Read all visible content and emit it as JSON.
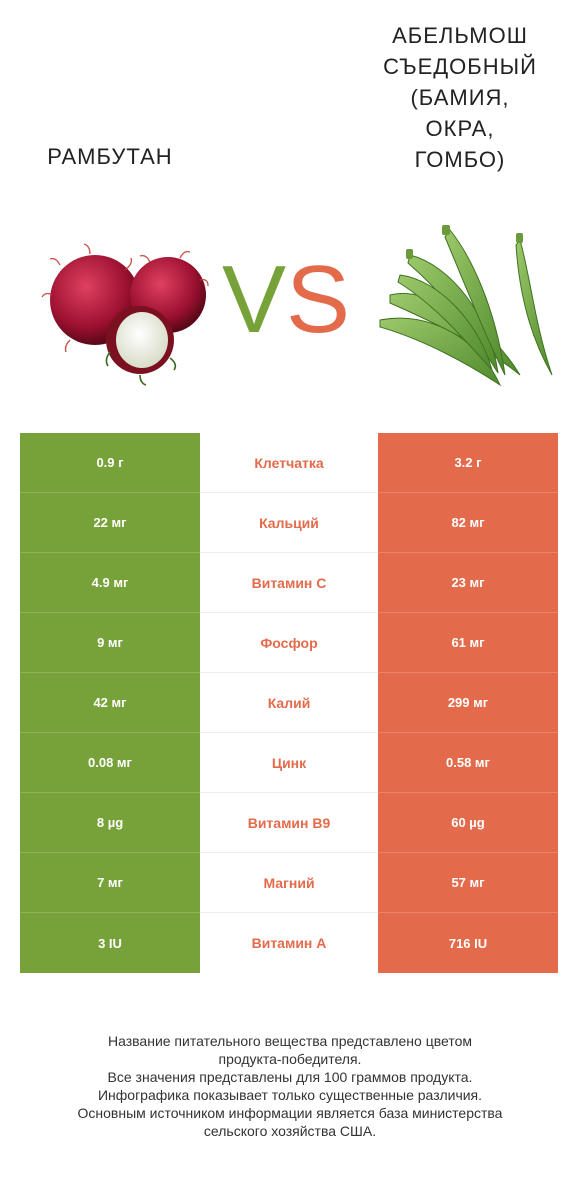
{
  "header": {
    "left_title": "РАМБУТАН",
    "right_title_lines": [
      "АБЕЛЬМОШ",
      "СЪЕДОБНЫЙ",
      "(БАМИЯ,",
      "ОКРА,",
      "ГОМБО)"
    ],
    "vs_v": "V",
    "vs_s": "S"
  },
  "colors": {
    "left": "#77a23a",
    "right": "#e36b4b"
  },
  "rows": [
    {
      "left": "0.9 г",
      "name": "Клетчатка",
      "right": "3.2 г"
    },
    {
      "left": "22 мг",
      "name": "Кальций",
      "right": "82 мг"
    },
    {
      "left": "4.9 мг",
      "name": "Витамин C",
      "right": "23 мг"
    },
    {
      "left": "9 мг",
      "name": "Фосфор",
      "right": "61 мг"
    },
    {
      "left": "42 мг",
      "name": "Калий",
      "right": "299 мг"
    },
    {
      "left": "0.08 мг",
      "name": "Цинк",
      "right": "0.58 мг"
    },
    {
      "left": "8 µg",
      "name": "Витамин B9",
      "right": "60 µg"
    },
    {
      "left": "7 мг",
      "name": "Магний",
      "right": "57 мг"
    },
    {
      "left": "3 IU",
      "name": "Витамин A",
      "right": "716 IU"
    }
  ],
  "footer": [
    "Название питательного вещества представлено цветом",
    "продукта-победителя.",
    "Все значения представлены для 100 граммов продукта.",
    "Инфографика показывает только существенные различия.",
    "Основным источником информации является база министерства",
    "сельского хозяйства США."
  ]
}
